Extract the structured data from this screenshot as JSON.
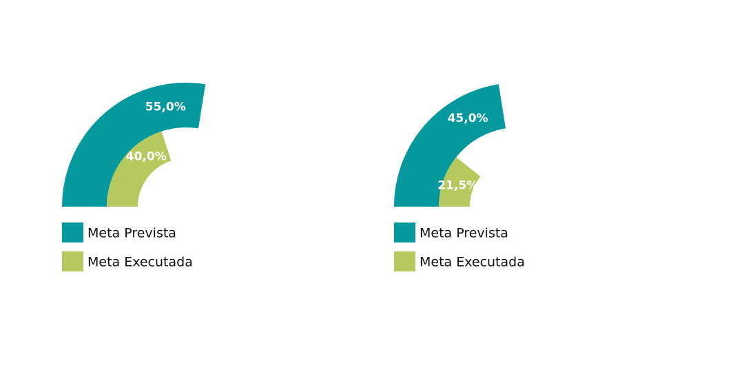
{
  "chart_data": [
    {
      "type": "radial-bar",
      "ylim": [
        0,
        100
      ],
      "series": [
        {
          "name": "Meta Prevista",
          "color": "#05989c",
          "values": [
            55.0
          ],
          "value_labels": [
            "55,0%"
          ]
        },
        {
          "name": "Meta Executada",
          "color": "#b5c95f",
          "values": [
            40.0
          ],
          "value_labels": [
            "40,0%"
          ]
        }
      ]
    },
    {
      "type": "radial-bar",
      "ylim": [
        0,
        100
      ],
      "series": [
        {
          "name": "Meta Prevista",
          "color": "#05989c",
          "values": [
            45.0
          ],
          "value_labels": [
            "45,0%"
          ]
        },
        {
          "name": "Meta Executada",
          "color": "#b5c95f",
          "values": [
            21.5
          ],
          "value_labels": [
            "21,5%"
          ]
        }
      ]
    }
  ]
}
